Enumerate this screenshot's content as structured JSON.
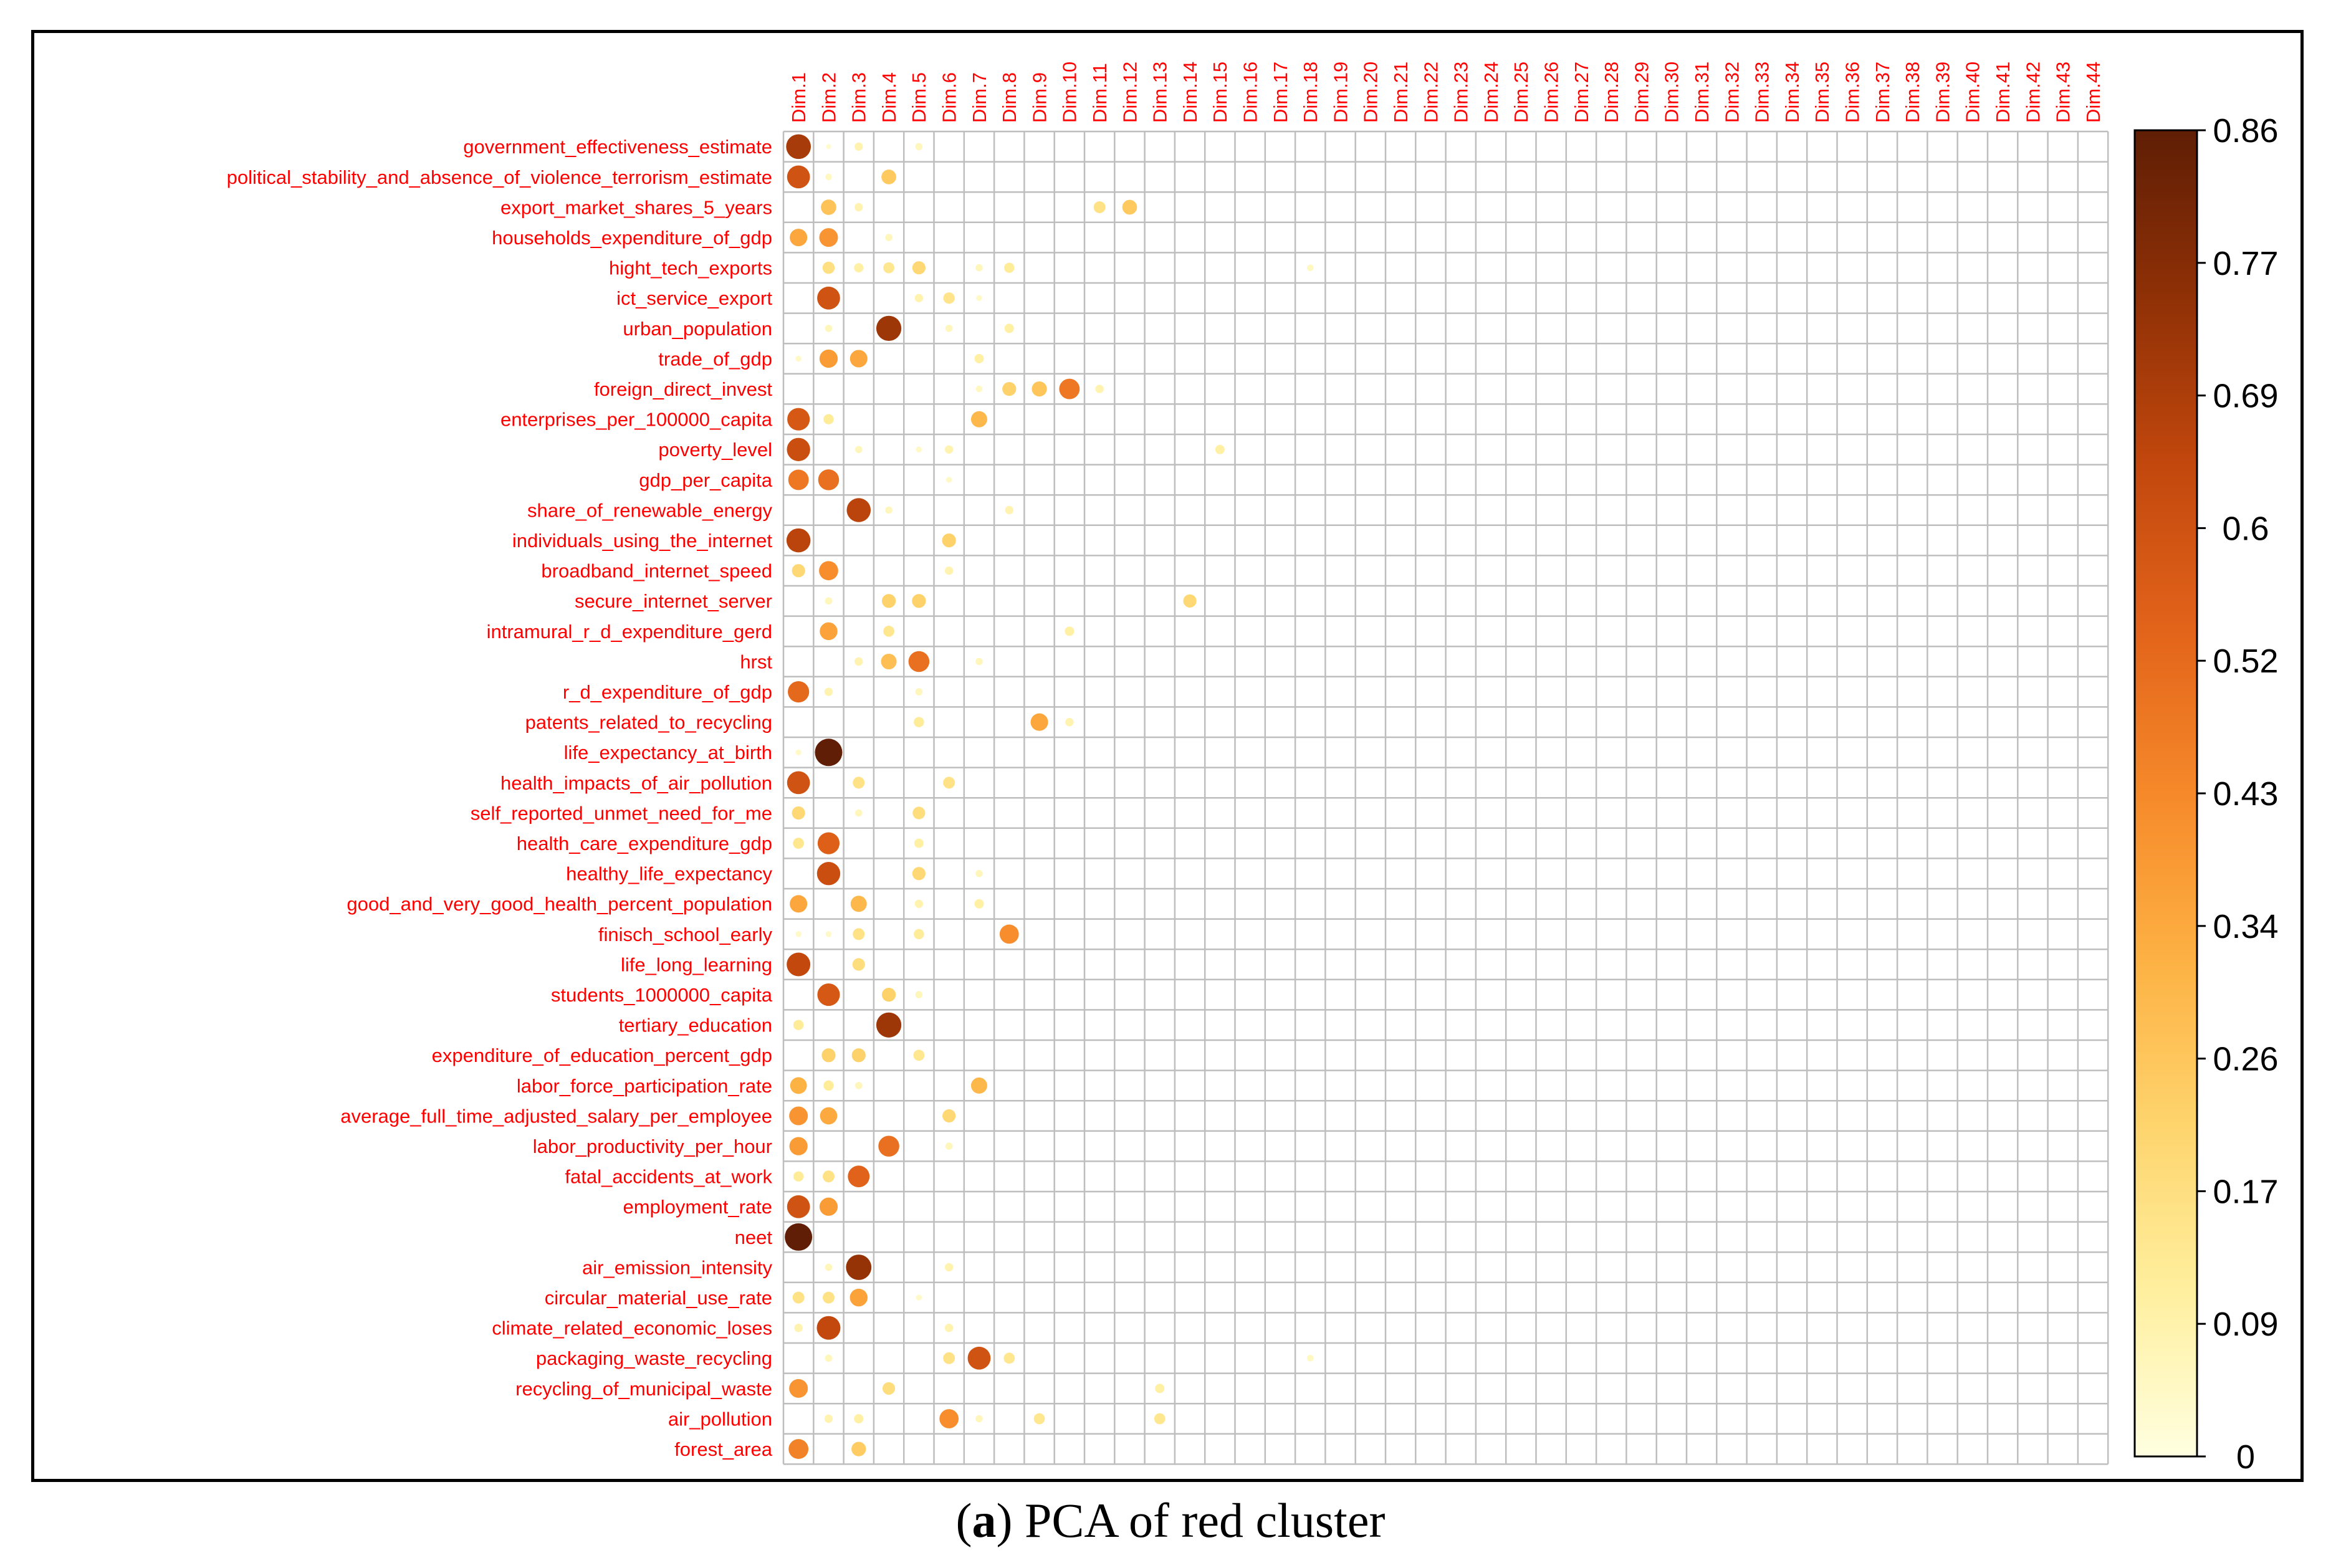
{
  "caption": {
    "letter": "a",
    "text": "PCA of red cluster"
  },
  "colors": {
    "label": "#ff0000",
    "grid": "#bebebe",
    "scale": [
      "#ffffe0",
      "#ffef9e",
      "#fed46d",
      "#fdb143",
      "#f6892a",
      "#e2631a",
      "#c1470d",
      "#8f3006",
      "#5f1e05"
    ]
  },
  "chart_data": {
    "type": "heatmap",
    "title": "",
    "columns": [
      "Dim.1",
      "Dim.2",
      "Dim.3",
      "Dim.4",
      "Dim.5",
      "Dim.6",
      "Dim.7",
      "Dim.8",
      "Dim.9",
      "Dim.10",
      "Dim.11",
      "Dim.12",
      "Dim.13",
      "Dim.14",
      "Dim.15",
      "Dim.16",
      "Dim.17",
      "Dim.18",
      "Dim.19",
      "Dim.20",
      "Dim.21",
      "Dim.22",
      "Dim.23",
      "Dim.24",
      "Dim.25",
      "Dim.26",
      "Dim.27",
      "Dim.28",
      "Dim.29",
      "Dim.30",
      "Dim.31",
      "Dim.32",
      "Dim.33",
      "Dim.34",
      "Dim.35",
      "Dim.36",
      "Dim.37",
      "Dim.38",
      "Dim.39",
      "Dim.40",
      "Dim.41",
      "Dim.42",
      "Dim.43",
      "Dim.44"
    ],
    "rows": [
      "government_effectiveness_estimate",
      "political_stability_and_absence_of_violence_terrorism_estimate",
      "export_market_shares_5_years",
      "households_expenditure_of_gdp",
      "hight_tech_exports",
      "ict_service_export",
      "urban_population",
      "trade_of_gdp",
      "foreign_direct_invest",
      "enterprises_per_100000_capita",
      "poverty_level",
      "gdp_per_capita",
      "share_of_renewable_energy",
      "individuals_using_the_internet",
      "broadband_internet_speed",
      "secure_internet_server",
      "intramural_r_d_expenditure_gerd",
      "hrst",
      "r_d_expenditure_of_gdp",
      "patents_related_to_recycling",
      "life_expectancy_at_birth",
      "health_impacts_of_air_pollution",
      "self_reported_unmet_need_for_me",
      "health_care_expenditure_gdp",
      "healthy_life_expectancy",
      "good_and_very_good_health_percent_population",
      "finisch_school_early",
      "life_long_learning",
      "students_1000000_capita",
      "tertiary_education",
      "expenditure_of_education_percent_gdp",
      "labor_force_participation_rate",
      "average_full_time_adjusted_salary_per_employee",
      "labor_productivity_per_hour",
      "fatal_accidents_at_work",
      "employment_rate",
      "neet",
      "air_emission_intensity",
      "circular_material_use_rate",
      "climate_related_economic_loses",
      "packaging_waste_recycling",
      "recycling_of_municipal_waste",
      "air_pollution",
      "forest_area"
    ],
    "value_range": [
      0,
      0.86
    ],
    "legend": {
      "position": "right",
      "ticks": [
        "0",
        "0.09",
        "0.17",
        "0.26",
        "0.34",
        "0.43",
        "0.52",
        "0.6",
        "0.69",
        "0.77",
        "0.86"
      ]
    },
    "cells": [
      {
        "r": 0,
        "c": 0,
        "v": 0.7
      },
      {
        "r": 0,
        "c": 1,
        "v": 0.03
      },
      {
        "r": 0,
        "c": 2,
        "v": 0.08
      },
      {
        "r": 0,
        "c": 4,
        "v": 0.06
      },
      {
        "r": 1,
        "c": 0,
        "v": 0.6
      },
      {
        "r": 1,
        "c": 1,
        "v": 0.05
      },
      {
        "r": 1,
        "c": 3,
        "v": 0.25
      },
      {
        "r": 2,
        "c": 1,
        "v": 0.27
      },
      {
        "r": 2,
        "c": 2,
        "v": 0.08
      },
      {
        "r": 2,
        "c": 10,
        "v": 0.16
      },
      {
        "r": 2,
        "c": 11,
        "v": 0.25
      },
      {
        "r": 3,
        "c": 0,
        "v": 0.35
      },
      {
        "r": 3,
        "c": 1,
        "v": 0.4
      },
      {
        "r": 3,
        "c": 3,
        "v": 0.06
      },
      {
        "r": 4,
        "c": 1,
        "v": 0.17
      },
      {
        "r": 4,
        "c": 2,
        "v": 0.1
      },
      {
        "r": 4,
        "c": 3,
        "v": 0.14
      },
      {
        "r": 4,
        "c": 4,
        "v": 0.2
      },
      {
        "r": 4,
        "c": 6,
        "v": 0.06
      },
      {
        "r": 4,
        "c": 7,
        "v": 0.12
      },
      {
        "r": 4,
        "c": 17,
        "v": 0.05
      },
      {
        "r": 5,
        "c": 1,
        "v": 0.6
      },
      {
        "r": 5,
        "c": 4,
        "v": 0.08
      },
      {
        "r": 5,
        "c": 5,
        "v": 0.15
      },
      {
        "r": 5,
        "c": 6,
        "v": 0.04
      },
      {
        "r": 6,
        "c": 1,
        "v": 0.06
      },
      {
        "r": 6,
        "c": 3,
        "v": 0.72
      },
      {
        "r": 6,
        "c": 5,
        "v": 0.06
      },
      {
        "r": 6,
        "c": 7,
        "v": 0.1
      },
      {
        "r": 7,
        "c": 0,
        "v": 0.04
      },
      {
        "r": 7,
        "c": 1,
        "v": 0.38
      },
      {
        "r": 7,
        "c": 2,
        "v": 0.35
      },
      {
        "r": 7,
        "c": 6,
        "v": 0.1
      },
      {
        "r": 8,
        "c": 6,
        "v": 0.05
      },
      {
        "r": 8,
        "c": 7,
        "v": 0.22
      },
      {
        "r": 8,
        "c": 8,
        "v": 0.26
      },
      {
        "r": 8,
        "c": 9,
        "v": 0.48
      },
      {
        "r": 8,
        "c": 10,
        "v": 0.08
      },
      {
        "r": 9,
        "c": 0,
        "v": 0.58
      },
      {
        "r": 9,
        "c": 1,
        "v": 0.12
      },
      {
        "r": 9,
        "c": 6,
        "v": 0.3
      },
      {
        "r": 10,
        "c": 0,
        "v": 0.62
      },
      {
        "r": 10,
        "c": 2,
        "v": 0.06
      },
      {
        "r": 10,
        "c": 4,
        "v": 0.04
      },
      {
        "r": 10,
        "c": 5,
        "v": 0.08
      },
      {
        "r": 10,
        "c": 14,
        "v": 0.1
      },
      {
        "r": 11,
        "c": 0,
        "v": 0.48
      },
      {
        "r": 11,
        "c": 1,
        "v": 0.5
      },
      {
        "r": 11,
        "c": 5,
        "v": 0.04
      },
      {
        "r": 12,
        "c": 2,
        "v": 0.66
      },
      {
        "r": 12,
        "c": 3,
        "v": 0.06
      },
      {
        "r": 12,
        "c": 7,
        "v": 0.08
      },
      {
        "r": 13,
        "c": 0,
        "v": 0.66
      },
      {
        "r": 13,
        "c": 5,
        "v": 0.22
      },
      {
        "r": 14,
        "c": 0,
        "v": 0.2
      },
      {
        "r": 14,
        "c": 1,
        "v": 0.42
      },
      {
        "r": 14,
        "c": 5,
        "v": 0.08
      },
      {
        "r": 15,
        "c": 1,
        "v": 0.06
      },
      {
        "r": 15,
        "c": 3,
        "v": 0.22
      },
      {
        "r": 15,
        "c": 4,
        "v": 0.22
      },
      {
        "r": 15,
        "c": 13,
        "v": 0.2
      },
      {
        "r": 16,
        "c": 1,
        "v": 0.36
      },
      {
        "r": 16,
        "c": 3,
        "v": 0.14
      },
      {
        "r": 16,
        "c": 9,
        "v": 0.1
      },
      {
        "r": 17,
        "c": 2,
        "v": 0.08
      },
      {
        "r": 17,
        "c": 3,
        "v": 0.28
      },
      {
        "r": 17,
        "c": 4,
        "v": 0.5
      },
      {
        "r": 17,
        "c": 6,
        "v": 0.06
      },
      {
        "r": 18,
        "c": 0,
        "v": 0.52
      },
      {
        "r": 18,
        "c": 1,
        "v": 0.08
      },
      {
        "r": 18,
        "c": 4,
        "v": 0.06
      },
      {
        "r": 19,
        "c": 4,
        "v": 0.12
      },
      {
        "r": 19,
        "c": 8,
        "v": 0.35
      },
      {
        "r": 19,
        "c": 9,
        "v": 0.08
      },
      {
        "r": 20,
        "c": 0,
        "v": 0.04
      },
      {
        "r": 20,
        "c": 1,
        "v": 0.86
      },
      {
        "r": 21,
        "c": 0,
        "v": 0.6
      },
      {
        "r": 21,
        "c": 2,
        "v": 0.16
      },
      {
        "r": 21,
        "c": 5,
        "v": 0.16
      },
      {
        "r": 22,
        "c": 0,
        "v": 0.2
      },
      {
        "r": 22,
        "c": 2,
        "v": 0.06
      },
      {
        "r": 22,
        "c": 4,
        "v": 0.18
      },
      {
        "r": 23,
        "c": 0,
        "v": 0.14
      },
      {
        "r": 23,
        "c": 1,
        "v": 0.55
      },
      {
        "r": 23,
        "c": 4,
        "v": 0.1
      },
      {
        "r": 24,
        "c": 1,
        "v": 0.62
      },
      {
        "r": 24,
        "c": 4,
        "v": 0.2
      },
      {
        "r": 24,
        "c": 6,
        "v": 0.06
      },
      {
        "r": 25,
        "c": 0,
        "v": 0.35
      },
      {
        "r": 25,
        "c": 2,
        "v": 0.3
      },
      {
        "r": 25,
        "c": 4,
        "v": 0.08
      },
      {
        "r": 25,
        "c": 6,
        "v": 0.1
      },
      {
        "r": 26,
        "c": 0,
        "v": 0.04
      },
      {
        "r": 26,
        "c": 1,
        "v": 0.04
      },
      {
        "r": 26,
        "c": 2,
        "v": 0.16
      },
      {
        "r": 26,
        "c": 4,
        "v": 0.12
      },
      {
        "r": 26,
        "c": 7,
        "v": 0.42
      },
      {
        "r": 27,
        "c": 0,
        "v": 0.64
      },
      {
        "r": 27,
        "c": 2,
        "v": 0.18
      },
      {
        "r": 28,
        "c": 1,
        "v": 0.58
      },
      {
        "r": 28,
        "c": 3,
        "v": 0.22
      },
      {
        "r": 28,
        "c": 4,
        "v": 0.06
      },
      {
        "r": 29,
        "c": 0,
        "v": 0.12
      },
      {
        "r": 29,
        "c": 3,
        "v": 0.72
      },
      {
        "r": 30,
        "c": 1,
        "v": 0.22
      },
      {
        "r": 30,
        "c": 2,
        "v": 0.22
      },
      {
        "r": 30,
        "c": 4,
        "v": 0.14
      },
      {
        "r": 31,
        "c": 0,
        "v": 0.32
      },
      {
        "r": 31,
        "c": 1,
        "v": 0.12
      },
      {
        "r": 31,
        "c": 2,
        "v": 0.06
      },
      {
        "r": 31,
        "c": 6,
        "v": 0.3
      },
      {
        "r": 32,
        "c": 0,
        "v": 0.4
      },
      {
        "r": 32,
        "c": 1,
        "v": 0.34
      },
      {
        "r": 32,
        "c": 5,
        "v": 0.2
      },
      {
        "r": 33,
        "c": 0,
        "v": 0.38
      },
      {
        "r": 33,
        "c": 3,
        "v": 0.5
      },
      {
        "r": 33,
        "c": 5,
        "v": 0.06
      },
      {
        "r": 34,
        "c": 0,
        "v": 0.12
      },
      {
        "r": 34,
        "c": 1,
        "v": 0.16
      },
      {
        "r": 34,
        "c": 2,
        "v": 0.54
      },
      {
        "r": 35,
        "c": 0,
        "v": 0.6
      },
      {
        "r": 35,
        "c": 1,
        "v": 0.38
      },
      {
        "r": 36,
        "c": 0,
        "v": 0.86
      },
      {
        "r": 37,
        "c": 1,
        "v": 0.06
      },
      {
        "r": 37,
        "c": 2,
        "v": 0.74
      },
      {
        "r": 37,
        "c": 5,
        "v": 0.08
      },
      {
        "r": 38,
        "c": 0,
        "v": 0.16
      },
      {
        "r": 38,
        "c": 1,
        "v": 0.16
      },
      {
        "r": 38,
        "c": 2,
        "v": 0.36
      },
      {
        "r": 38,
        "c": 4,
        "v": 0.04
      },
      {
        "r": 39,
        "c": 0,
        "v": 0.08
      },
      {
        "r": 39,
        "c": 1,
        "v": 0.64
      },
      {
        "r": 39,
        "c": 5,
        "v": 0.08
      },
      {
        "r": 40,
        "c": 1,
        "v": 0.06
      },
      {
        "r": 40,
        "c": 5,
        "v": 0.16
      },
      {
        "r": 40,
        "c": 6,
        "v": 0.6
      },
      {
        "r": 40,
        "c": 7,
        "v": 0.14
      },
      {
        "r": 40,
        "c": 17,
        "v": 0.05
      },
      {
        "r": 41,
        "c": 0,
        "v": 0.4
      },
      {
        "r": 41,
        "c": 3,
        "v": 0.18
      },
      {
        "r": 41,
        "c": 12,
        "v": 0.1
      },
      {
        "r": 42,
        "c": 1,
        "v": 0.08
      },
      {
        "r": 42,
        "c": 2,
        "v": 0.1
      },
      {
        "r": 42,
        "c": 5,
        "v": 0.42
      },
      {
        "r": 42,
        "c": 6,
        "v": 0.06
      },
      {
        "r": 42,
        "c": 8,
        "v": 0.14
      },
      {
        "r": 42,
        "c": 12,
        "v": 0.14
      },
      {
        "r": 43,
        "c": 0,
        "v": 0.45
      },
      {
        "r": 43,
        "c": 2,
        "v": 0.24
      }
    ]
  }
}
